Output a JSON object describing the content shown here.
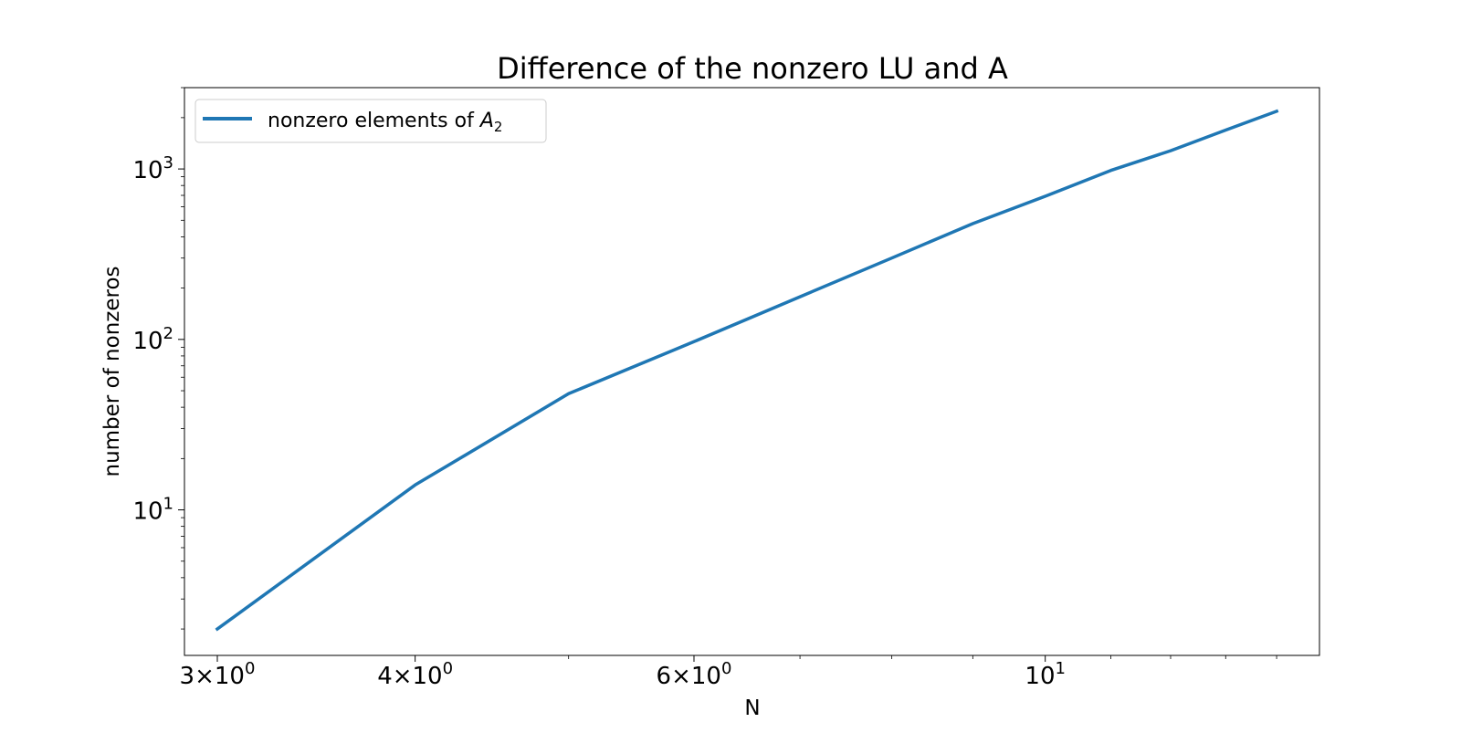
{
  "chart_data": {
    "type": "line",
    "title": "Difference of the nonzero LU and A",
    "xlabel": "N",
    "ylabel": "number of nonzeros",
    "xscale": "log",
    "yscale": "log",
    "xlim": [
      2.86,
      14.9
    ],
    "ylim": [
      1.4,
      3000
    ],
    "grid": false,
    "legend_position": "top-left",
    "x_ticks": [
      {
        "value": 3,
        "mantissa": "3",
        "exp": "0"
      },
      {
        "value": 4,
        "mantissa": "4",
        "exp": "0"
      },
      {
        "value": 6,
        "mantissa": "6",
        "exp": "0"
      },
      {
        "value": 10,
        "mantissa": "",
        "exp": "1"
      }
    ],
    "x_minor_ticks": [
      5,
      7,
      8,
      9,
      11,
      12,
      13,
      14
    ],
    "y_ticks": [
      {
        "value": 10,
        "exp": "1"
      },
      {
        "value": 100,
        "exp": "2"
      },
      {
        "value": 1000,
        "exp": "3"
      }
    ],
    "y_minor_ticks": [
      2,
      3,
      4,
      5,
      6,
      7,
      8,
      9,
      20,
      30,
      40,
      50,
      60,
      70,
      80,
      90,
      200,
      300,
      400,
      500,
      600,
      700,
      800,
      900,
      2000,
      3000
    ],
    "series": [
      {
        "name": "nonzero elements of A2",
        "legend_base": "nonzero elements of ",
        "legend_math": "A",
        "legend_sub": "2",
        "color": "#1f77b4",
        "x": [
          3,
          4,
          5,
          6,
          7,
          8,
          9,
          10,
          11,
          12,
          13,
          14
        ],
        "y": [
          2,
          14,
          48,
          97,
          178,
          300,
          478,
          692,
          980,
          1280,
          1690,
          2180
        ]
      }
    ]
  }
}
